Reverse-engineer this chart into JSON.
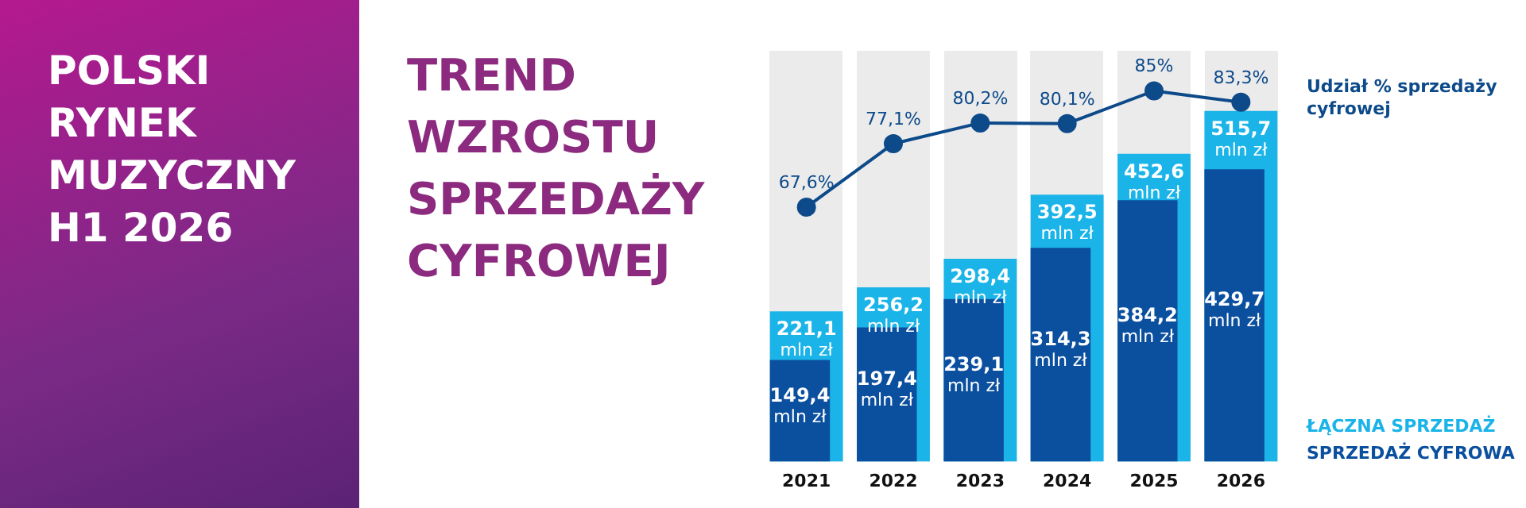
{
  "chart_data": {
    "type": "bar",
    "title": "POLSKI RYNEK MUZYCZNY H1 2026",
    "subtitle": "TREND WZROSTU SPRZEDAŻY CYFROWEJ",
    "categories": [
      "2021",
      "2022",
      "2023",
      "2024",
      "2025",
      "2026"
    ],
    "series": [
      {
        "name": "ŁĄCZNA SPRZEDAŻ",
        "color": "#1bb4e8",
        "values": [
          221.1,
          256.2,
          298.4,
          392.5,
          452.6,
          515.7
        ],
        "value_labels": [
          "221,1 mln zł",
          "256,2 mln zł",
          "298,4 mln zł",
          "392,5 mln zł",
          "452,6 mln zł",
          "515,7 mln zł"
        ]
      },
      {
        "name": "SPRZEDAŻ CYFROWA",
        "color": "#0b4f9f",
        "values": [
          149.4,
          197.4,
          239.1,
          314.3,
          384.2,
          429.7
        ],
        "value_labels": [
          "149,4 mln zł",
          "197,4 mln zł",
          "239,1 mln zł",
          "314,3 mln zł",
          "384,2 mln zł",
          "429,7 mln zł"
        ]
      },
      {
        "name": "Udział % sprzedaży cyfrowej",
        "type": "line",
        "axis": "y2",
        "color": "#0d4a8a",
        "values": [
          67.6,
          77.1,
          80.2,
          80.1,
          85,
          83.3
        ],
        "value_labels": [
          "67,6%",
          "77,1%",
          "80,2%",
          "80,1%",
          "85%",
          "83,3%"
        ]
      }
    ],
    "ylim": [
      0,
      604
    ],
    "y2lim": [
      29.5,
      91
    ],
    "tick_labels": "x",
    "grid": false,
    "legend": "right",
    "marker": "circle"
  }
}
